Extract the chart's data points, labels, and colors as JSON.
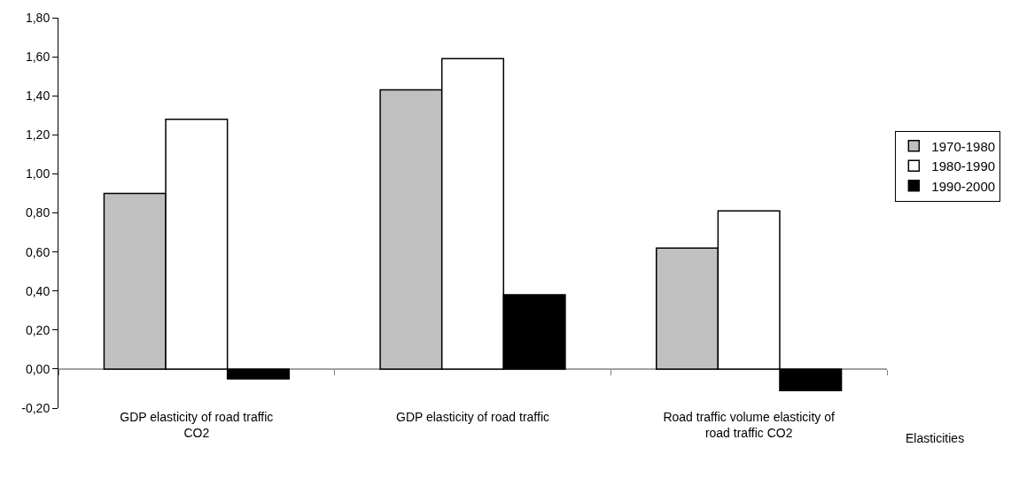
{
  "chart_data": {
    "type": "bar",
    "xlabel": "Elasticities",
    "categories": [
      "GDP elasticity of road traffic CO2",
      "GDP elasticity of road traffic",
      "Road traffic volume elasticity of road traffic CO2"
    ],
    "series": [
      {
        "name": "1970-1980",
        "color": "#c0c0c0",
        "values": [
          0.9,
          1.43,
          0.62
        ]
      },
      {
        "name": "1980-1990",
        "color": "#ffffff",
        "values": [
          1.28,
          1.59,
          0.81
        ]
      },
      {
        "name": "1990-2000",
        "color": "#000000",
        "values": [
          -0.05,
          0.38,
          -0.11
        ]
      }
    ],
    "ylim": [
      -0.2,
      1.8
    ],
    "yticks": [
      {
        "value": -0.2,
        "label": "-0,20"
      },
      {
        "value": 0,
        "label": "0,00"
      },
      {
        "value": 0.2,
        "label": "0,20"
      },
      {
        "value": 0.4,
        "label": "0,40"
      },
      {
        "value": 0.6,
        "label": "0,60"
      },
      {
        "value": 0.8,
        "label": "0,80"
      },
      {
        "value": 1,
        "label": "1,00"
      },
      {
        "value": 1.2,
        "label": "1,20"
      },
      {
        "value": 1.4,
        "label": "1,40"
      },
      {
        "value": 1.6,
        "label": "1,60"
      },
      {
        "value": 1.8,
        "label": "1,80"
      }
    ],
    "ref_lines": [
      {
        "axis": "y",
        "value": 0,
        "color": "#808080"
      }
    ],
    "grid": false,
    "legend": "right"
  }
}
